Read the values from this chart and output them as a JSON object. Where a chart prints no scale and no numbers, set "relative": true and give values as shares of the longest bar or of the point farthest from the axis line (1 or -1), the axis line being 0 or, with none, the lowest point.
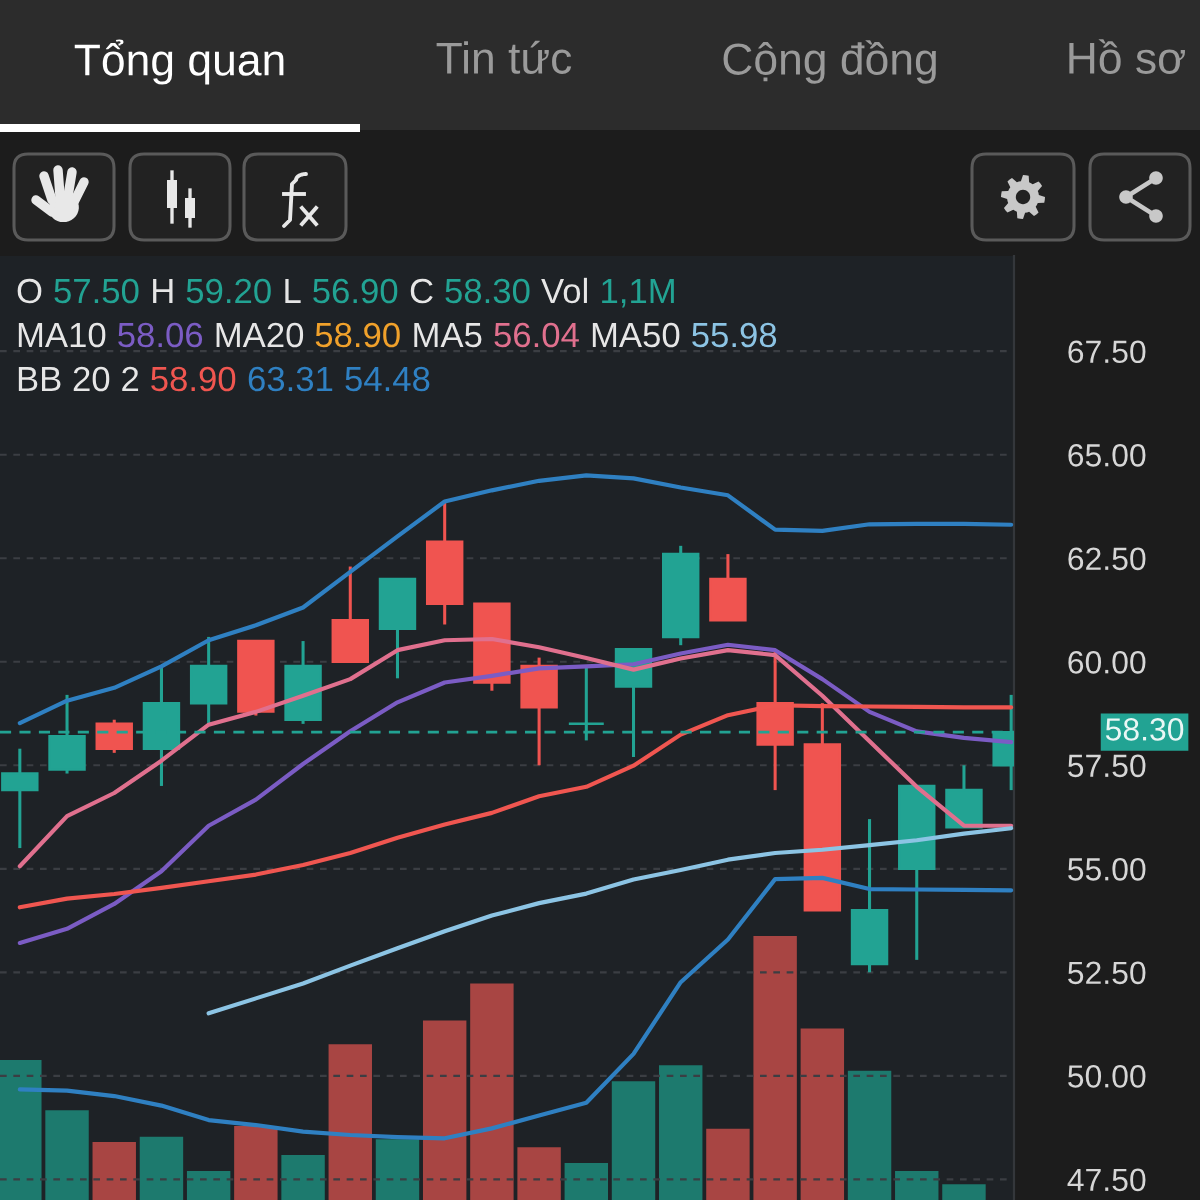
{
  "chart_data": [
    {
      "type": "candlestick",
      "categories": [
        null,
        null,
        null,
        null,
        null,
        null,
        null,
        null,
        null,
        null,
        null,
        null,
        null,
        null,
        null,
        null,
        null,
        null,
        null,
        null,
        null,
        null
      ],
      "ohlc": [
        [
          56.9,
          57.9,
          55.5,
          57.3
        ],
        [
          57.4,
          59.2,
          57.3,
          58.2
        ],
        [
          58.5,
          58.6,
          57.8,
          57.9
        ],
        [
          57.9,
          59.9,
          57.0,
          59.0
        ],
        [
          59.0,
          60.6,
          58.5,
          59.9
        ],
        [
          60.5,
          60.5,
          58.7,
          58.8
        ],
        [
          58.6,
          60.5,
          58.5,
          59.9
        ],
        [
          61.0,
          62.3,
          60.0,
          60.0
        ],
        [
          60.8,
          62.0,
          59.6,
          62.0
        ],
        [
          62.9,
          63.9,
          60.9,
          61.4
        ],
        [
          61.4,
          61.4,
          59.3,
          59.5
        ],
        [
          59.9,
          60.1,
          57.5,
          58.9
        ],
        [
          58.5,
          59.9,
          58.1,
          58.5
        ],
        [
          59.4,
          60.3,
          57.7,
          60.3
        ],
        [
          60.6,
          62.8,
          60.4,
          62.6
        ],
        [
          62.0,
          62.6,
          61.0,
          61.0
        ],
        [
          59.0,
          60.3,
          56.9,
          58.0
        ],
        [
          58.0,
          59.0,
          54.0,
          54.0
        ],
        [
          52.7,
          56.2,
          52.5,
          54.0
        ],
        [
          55.0,
          57.0,
          52.8,
          57.0
        ],
        [
          56.0,
          57.5,
          56.0,
          56.9
        ],
        [
          57.5,
          59.2,
          56.9,
          58.3
        ]
      ],
      "colors": [
        "#22a393",
        "#22a393",
        "#f05450",
        "#22a393",
        "#22a393",
        "#f05450",
        "#22a393",
        "#f05450",
        "#22a393",
        "#f05450",
        "#f05450",
        "#f05450",
        "#22a393",
        "#22a393",
        "#22a393",
        "#f05450",
        "#f05450",
        "#f05450",
        "#22a393",
        "#22a393",
        "#22a393",
        "#22a393"
      ],
      "series": [
        {
          "type": "line",
          "color": "#7b5cc4",
          "values": [
            53.21,
            53.55,
            54.15,
            54.94,
            56.04,
            56.67,
            57.53,
            58.32,
            59.02,
            59.5,
            59.66,
            59.84,
            59.89,
            59.94,
            60.2,
            60.41,
            60.28,
            59.58,
            58.79,
            58.32,
            58.16,
            58.06
          ]
        },
        {
          "type": "line",
          "color": "#f0a12b",
          "values": [
            null,
            null,
            null,
            null,
            null,
            null,
            null,
            null,
            null,
            null,
            null,
            null,
            null,
            null,
            null,
            null,
            null,
            null,
            null,
            null,
            null,
            null
          ]
        },
        {
          "type": "line",
          "color": "#e0708e",
          "values": [
            55.06,
            56.27,
            56.83,
            57.61,
            58.48,
            58.79,
            59.18,
            59.58,
            60.28,
            60.52,
            60.55,
            60.35,
            60.09,
            59.81,
            60.08,
            60.28,
            60.16,
            59.18,
            58.08,
            56.98,
            56.04,
            56.04
          ]
        },
        {
          "type": "line",
          "color": "#8cc4e4",
          "values": [
            null,
            null,
            null,
            null,
            51.51,
            51.87,
            52.23,
            52.66,
            53.08,
            53.49,
            53.87,
            54.17,
            54.4,
            54.74,
            54.97,
            55.22,
            55.38,
            55.46,
            55.57,
            55.69,
            55.85,
            55.98
          ]
        },
        {
          "type": "line",
          "color": "#f05650",
          "values": [
            54.07,
            54.28,
            54.39,
            54.54,
            54.7,
            54.86,
            55.09,
            55.38,
            55.75,
            56.07,
            56.35,
            56.75,
            56.98,
            57.49,
            58.24,
            58.71,
            58.95,
            58.93,
            58.92,
            58.91,
            58.9,
            58.9
          ]
        },
        {
          "type": "line",
          "color": "#2f80c2",
          "values": [
            58.52,
            59.06,
            59.37,
            59.89,
            60.52,
            60.88,
            61.31,
            62.17,
            63.03,
            63.87,
            64.14,
            64.37,
            64.5,
            64.43,
            64.21,
            64.02,
            63.19,
            63.16,
            63.32,
            63.33,
            63.33,
            63.31
          ]
        },
        {
          "type": "line",
          "color": "#2f80c2",
          "values": [
            49.67,
            49.64,
            49.51,
            49.28,
            48.93,
            48.81,
            48.65,
            48.57,
            48.52,
            48.49,
            48.73,
            49.04,
            49.35,
            50.53,
            52.26,
            53.29,
            54.75,
            54.78,
            54.51,
            54.5,
            54.49,
            54.48
          ]
        }
      ],
      "ylim": [
        47.0,
        69.8
      ],
      "yticks": [
        {
          "value": 47.5,
          "label": "47.50"
        },
        {
          "value": 50,
          "label": "50.00"
        },
        {
          "value": 52.5,
          "label": "52.50"
        },
        {
          "value": 55,
          "label": "55.00"
        },
        {
          "value": 57.5,
          "label": "57.50"
        },
        {
          "value": 60,
          "label": "60.00"
        },
        {
          "value": 62.5,
          "label": "62.50"
        },
        {
          "value": 65,
          "label": "65.00"
        },
        {
          "value": 67.5,
          "label": "67.50"
        }
      ],
      "grid": "y",
      "tick_labels": "y",
      "ref_lines": [
        {
          "axis": "y",
          "value": 58.3,
          "label": "58.30",
          "color": "#22a393",
          "line_style": "dashed"
        }
      ],
      "annotations": [
        "Tổng quan",
        "Tin tức",
        "Cộng đồng",
        "Hồ sơ",
        "O 57.50 H 59.20 L 56.90 C 58.30 Vol 1,1M",
        "MA10 58.06 MA20 58.90 MA5 56.04 MA50 55.98",
        "BB 20 2 58.90 63.31 54.48"
      ]
    },
    {
      "type": "bar",
      "categories": [
        null,
        null,
        null,
        null,
        null,
        null,
        null,
        null,
        null,
        null,
        null,
        null,
        null,
        null,
        null,
        null,
        null,
        null,
        null,
        null,
        null,
        null
      ],
      "values": [
        0.53,
        0.34,
        0.22,
        0.24,
        0.11,
        0.28,
        0.17,
        0.59,
        0.23,
        0.68,
        0.82,
        0.2,
        0.14,
        0.45,
        0.51,
        0.27,
        1,
        0.65,
        0.49,
        0.11,
        0.06,
        null
      ],
      "colors": [
        "#1d7a6e",
        "#1d7a6e",
        "#a84543",
        "#1d7a6e",
        "#1d7a6e",
        "#a84543",
        "#1d7a6e",
        "#a84543",
        "#1d7a6e",
        "#a84543",
        "#a84543",
        "#a84543",
        "#1d7a6e",
        "#1d7a6e",
        "#1d7a6e",
        "#a84543",
        "#a84543",
        "#a84543",
        "#1d7a6e",
        "#1d7a6e",
        "#1d7a6e",
        "#1d7a6e"
      ],
      "relative": true,
      "tick_labels": false
    }
  ]
}
